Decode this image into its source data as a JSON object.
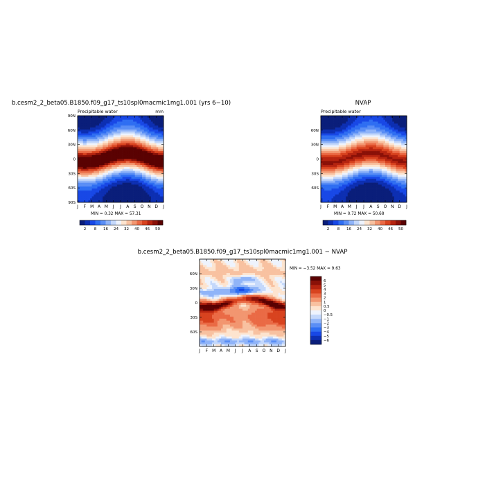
{
  "months": [
    "J",
    "F",
    "M",
    "A",
    "M",
    "J",
    "J",
    "A",
    "S",
    "O",
    "N",
    "D",
    "J"
  ],
  "panel1": {
    "title": "b.cesm2_2_beta05.B1850.f09_g17_ts10spl0macmic1mg1.001 (yrs 6−10)",
    "subtitle": "Precipitable water",
    "units": "mm",
    "yticks": [
      "90N",
      "60N",
      "30N",
      "0",
      "30S",
      "60S",
      "90S"
    ],
    "stats": "MIN =    0.32  MAX =   57.31",
    "colorbar_labels": [
      "2",
      "8",
      "16",
      "24",
      "32",
      "40",
      "46",
      "50"
    ]
  },
  "panel2": {
    "title": "NVAP",
    "subtitle": "Precipitable water",
    "yticks": [
      "60N",
      "30N",
      "0",
      "30S",
      "60S"
    ],
    "stats": "MIN =    0.72  MAX =   50.68",
    "colorbar_labels": [
      "2",
      "8",
      "16",
      "24",
      "32",
      "40",
      "46",
      "50"
    ]
  },
  "panel3": {
    "title": "b.cesm2_2_beta05.B1850.f09_g17_ts10spl0macmic1mg1.001 − NVAP",
    "yticks": [
      "60N",
      "30N",
      "0",
      "30S",
      "60S"
    ],
    "stats": "MIN =  −3.52  MAX =    9.63",
    "colorbar_labels": [
      "6",
      "5",
      "4",
      "3",
      "2",
      "1",
      "0.5",
      "0",
      "−0.5",
      "−1",
      "−2",
      "−3",
      "−4",
      "−5",
      "−6"
    ]
  },
  "colors": {
    "abs_scale": [
      "#0a1e7a",
      "#0d2fb2",
      "#1848e6",
      "#2f6ef2",
      "#5a8ef5",
      "#90b4f8",
      "#c4d8fb",
      "#eef3fd",
      "#fde4cf",
      "#f8c1a0",
      "#f29670",
      "#ea6a45",
      "#d8431f",
      "#b52410",
      "#8a1108",
      "#5a0202"
    ],
    "diff_scale": [
      "#0a1e7a",
      "#0d2fb2",
      "#1848e6",
      "#2f6ef2",
      "#5a8ef5",
      "#90b4f8",
      "#c4d8fb",
      "#eef3fd",
      "#fde4cf",
      "#f8c1a0",
      "#f29670",
      "#ea6a45",
      "#d8431f",
      "#b52410",
      "#8a1108",
      "#5a0202"
    ]
  },
  "chart_data": [
    {
      "type": "heatmap",
      "title": "b.cesm2_2_beta05.B1850.f09_g17_ts10spl0macmic1mg1.001 (yrs 6−10)",
      "subtitle": "Precipitable water",
      "units": "mm",
      "x": [
        "J",
        "F",
        "M",
        "A",
        "M",
        "J",
        "J",
        "A",
        "S",
        "O",
        "N",
        "D",
        "J"
      ],
      "ylim": [
        -90,
        90
      ],
      "min": 0.32,
      "max": 57.31,
      "contour_levels": [
        2,
        8,
        16,
        24,
        32,
        40,
        46,
        50
      ],
      "max_lat_by_month": [
        -6,
        -7,
        -6,
        -3,
        2,
        7,
        10,
        12,
        10,
        6,
        0,
        -4,
        -6
      ],
      "peak_value": 57.31
    },
    {
      "type": "heatmap",
      "title": "NVAP",
      "subtitle": "Precipitable water",
      "x": [
        "J",
        "F",
        "M",
        "A",
        "M",
        "J",
        "J",
        "A",
        "S",
        "O",
        "N",
        "D",
        "J"
      ],
      "ylim": [
        -90,
        90
      ],
      "min": 0.72,
      "max": 50.68,
      "contour_levels": [
        2,
        8,
        16,
        24,
        32,
        40,
        46,
        50
      ],
      "max_lat_by_month": [
        -6,
        -7,
        -6,
        -3,
        2,
        7,
        10,
        12,
        10,
        6,
        0,
        -4,
        -6
      ],
      "peak_value": 50.68
    },
    {
      "type": "heatmap",
      "title": "b.cesm2_2_beta05.B1850.f09_g17_ts10spl0macmic1mg1.001 − NVAP",
      "x": [
        "J",
        "F",
        "M",
        "A",
        "M",
        "J",
        "J",
        "A",
        "S",
        "O",
        "N",
        "D",
        "J"
      ],
      "ylim": [
        -90,
        90
      ],
      "min": -3.52,
      "max": 9.63,
      "contour_levels": [
        -6,
        -5,
        -4,
        -3,
        -2,
        -1,
        -0.5,
        0,
        0.5,
        1,
        2,
        3,
        4,
        5,
        6
      ]
    }
  ]
}
